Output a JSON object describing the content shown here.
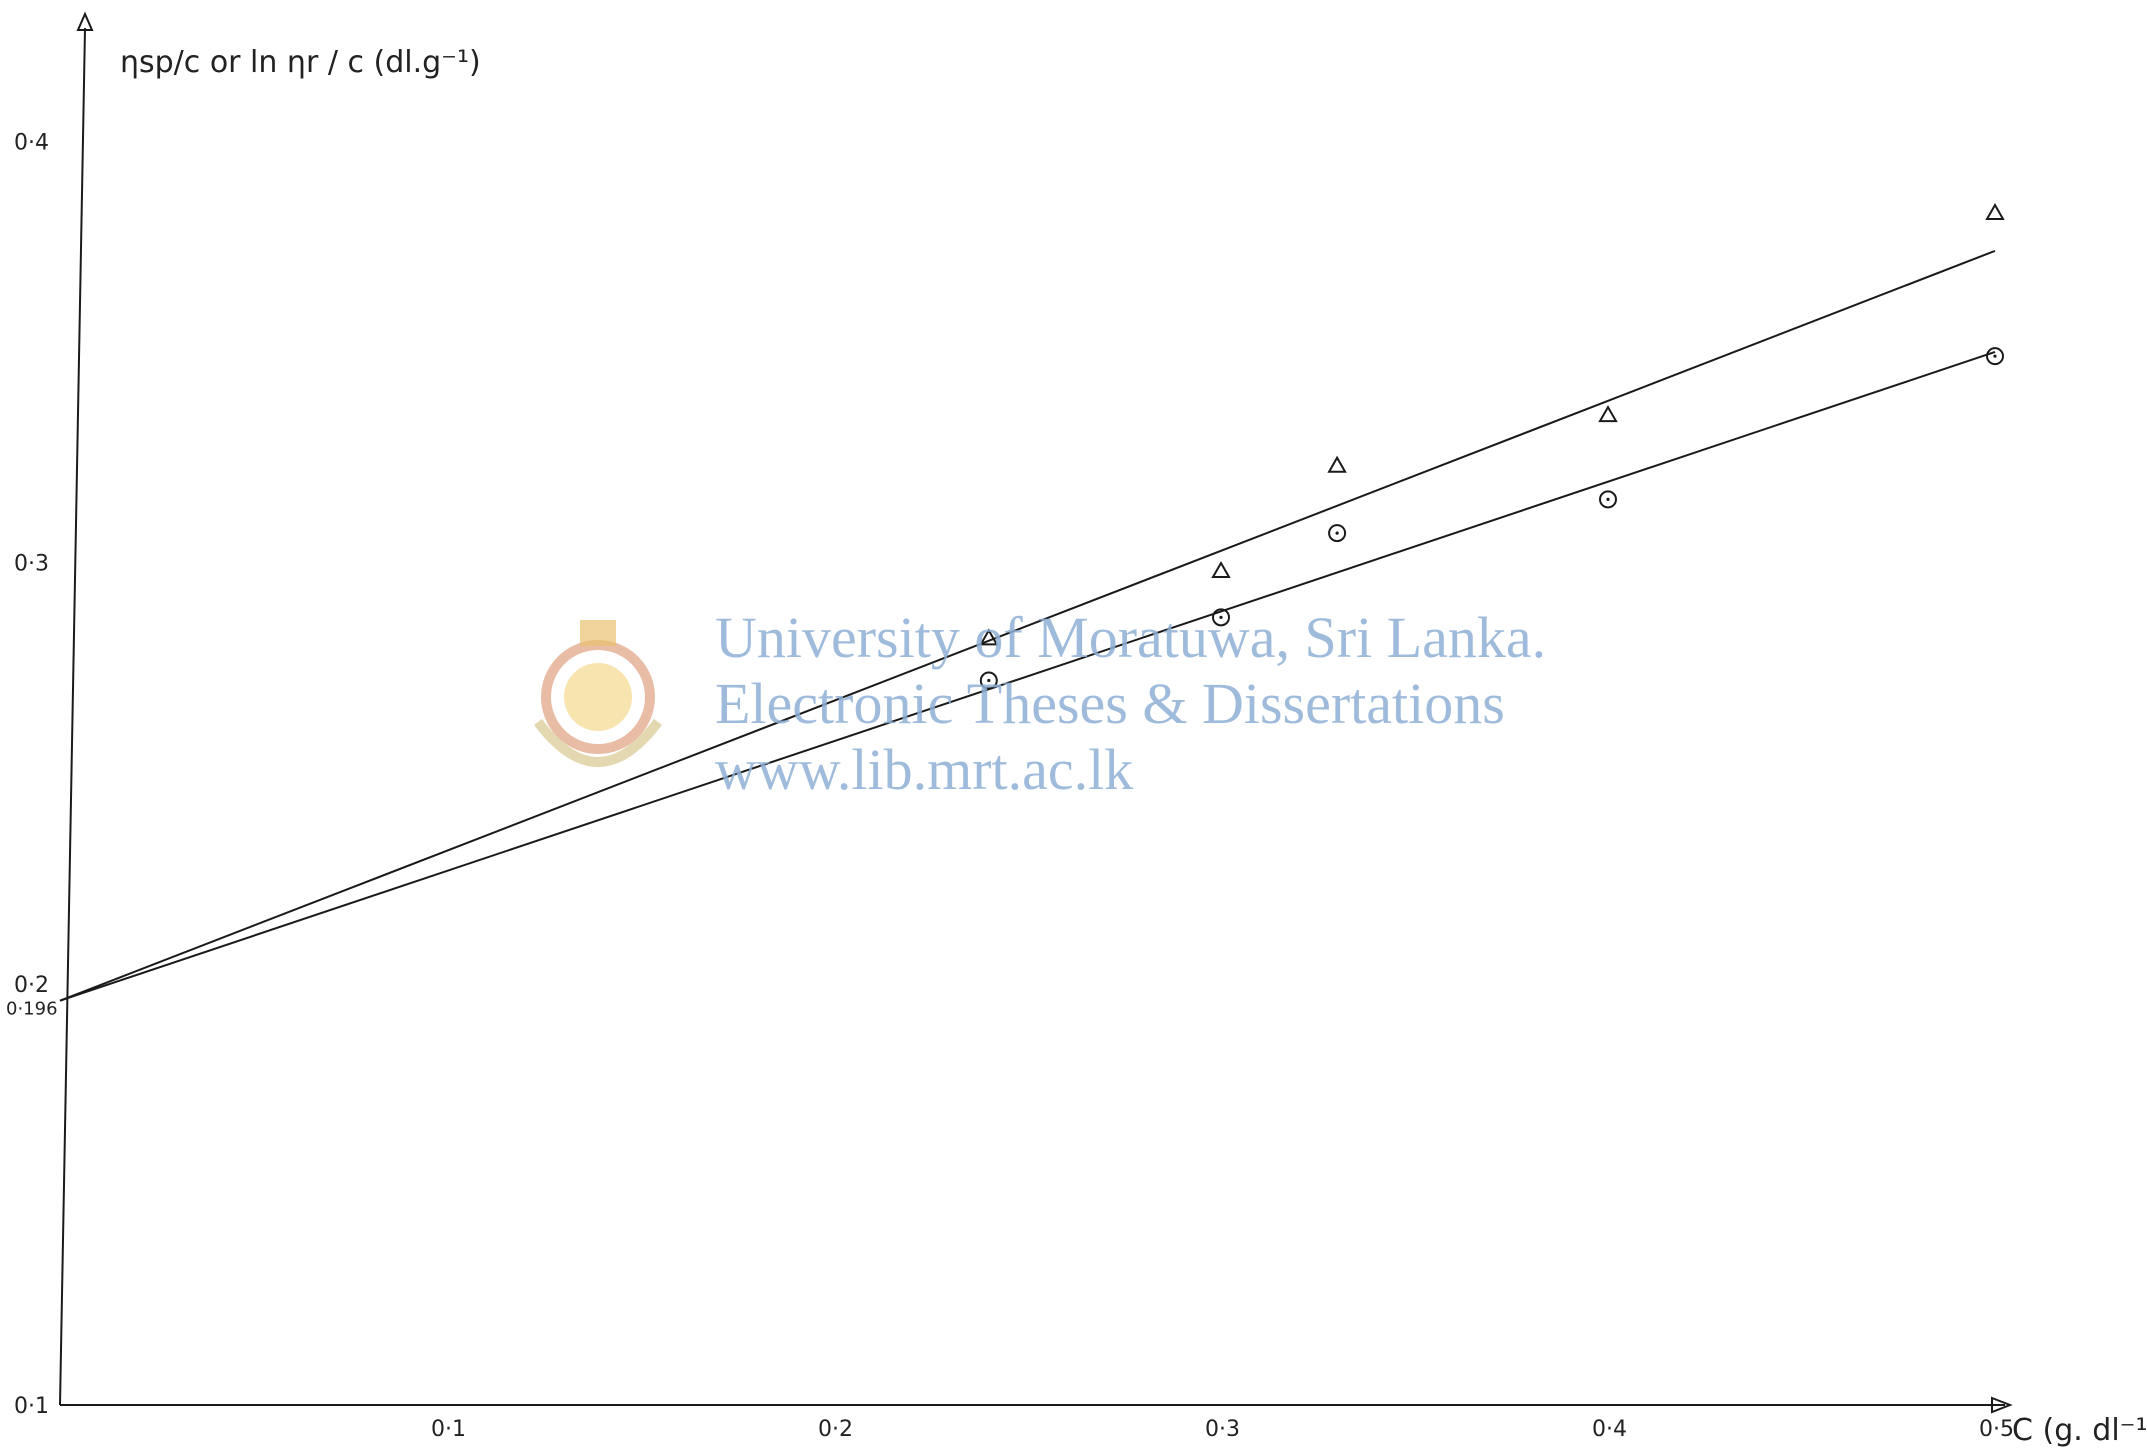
{
  "chart_data": {
    "type": "scatter",
    "ylabel": "ηsp/c or ln ηr / c (dl.g⁻¹)",
    "xlabel": "C (g. dl⁻¹)",
    "xlim": [
      0,
      0.5
    ],
    "ylim": [
      0.1,
      0.43
    ],
    "x_ticks": [
      "0·1",
      "0·2",
      "0·3",
      "0·4",
      "0·5"
    ],
    "x_tick_values": [
      0.1,
      0.2,
      0.3,
      0.4,
      0.5
    ],
    "y_ticks": [
      "0·1",
      "0·2",
      "0·3",
      "0·4"
    ],
    "y_tick_values": [
      0.1,
      0.2,
      0.3,
      0.4
    ],
    "intercept_label": "0·196",
    "intercept_value": 0.196,
    "grid": false,
    "series": [
      {
        "marker": "triangle",
        "x": [
          0.24,
          0.3,
          0.33,
          0.4,
          0.5
        ],
        "y": [
          0.282,
          0.298,
          0.323,
          0.335,
          0.383
        ],
        "fit": {
          "x": [
            0,
            0.5
          ],
          "y": [
            0.196,
            0.374
          ]
        }
      },
      {
        "marker": "circle",
        "x": [
          0.24,
          0.3,
          0.33,
          0.4,
          0.5
        ],
        "y": [
          0.272,
          0.287,
          0.307,
          0.315,
          0.349
        ],
        "fit": {
          "x": [
            0,
            0.5
          ],
          "y": [
            0.196,
            0.35
          ]
        }
      }
    ]
  },
  "watermark": {
    "lines": [
      "University of Moratuwa, Sri Lanka.",
      "Electronic Theses & Dissertations",
      "www.lib.mrt.ac.lk"
    ],
    "color": "#8fb0d6"
  }
}
